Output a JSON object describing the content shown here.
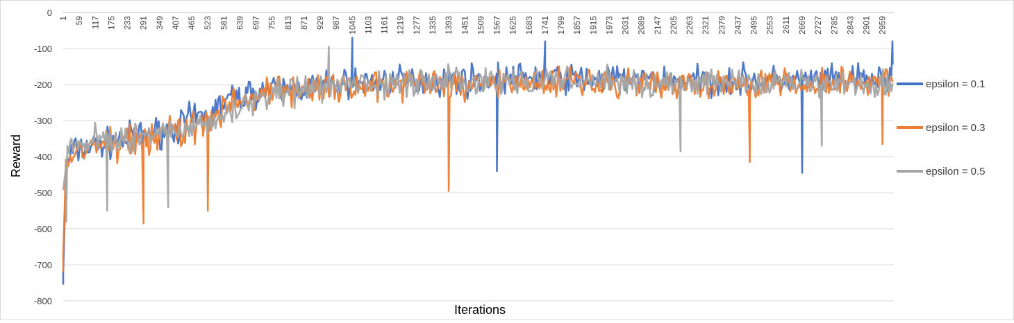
{
  "chart_data": {
    "type": "line",
    "title": "",
    "xlabel": "Iterations",
    "ylabel": "Reward",
    "ylim": [
      -800,
      0
    ],
    "yticks": [
      0,
      -100,
      -200,
      -300,
      -400,
      -500,
      -600,
      -700,
      -800
    ],
    "x_range": [
      1,
      3000
    ],
    "x_tick_labels": [
      "1",
      "59",
      "117",
      "175",
      "233",
      "291",
      "349",
      "407",
      "465",
      "523",
      "581",
      "639",
      "697",
      "755",
      "813",
      "871",
      "929",
      "987",
      "1045",
      "1103",
      "1161",
      "1219",
      "1277",
      "1335",
      "1393",
      "1451",
      "1509",
      "1567",
      "1625",
      "1683",
      "1741",
      "1799",
      "1857",
      "1915",
      "1973",
      "2031",
      "2089",
      "2147",
      "2205",
      "2263",
      "2321",
      "2379",
      "2437",
      "2495",
      "2553",
      "2611",
      "2669",
      "2727",
      "2785",
      "2843",
      "2901",
      "2959"
    ],
    "grid": "horizontal",
    "legend": "right",
    "series": [
      {
        "name": "epsilon = 0.1",
        "color": "#4472C4",
        "x": [
          1,
          12,
          30,
          60,
          100,
          150,
          200,
          300,
          400,
          465,
          523,
          600,
          700,
          800,
          900,
          987,
          1045,
          1200,
          1400,
          1567,
          1700,
          1741,
          1900,
          2100,
          2300,
          2500,
          2669,
          2800,
          2959,
          3000
        ],
        "center": [
          -720,
          -430,
          -390,
          -380,
          -370,
          -365,
          -355,
          -340,
          -320,
          -300,
          -285,
          -240,
          -220,
          -215,
          -205,
          -200,
          -195,
          -190,
          -190,
          -185,
          -180,
          -180,
          -185,
          -185,
          -190,
          -190,
          -190,
          -190,
          -185,
          -180
        ],
        "spread": [
          40,
          80,
          60,
          60,
          60,
          60,
          60,
          60,
          60,
          70,
          60,
          60,
          60,
          60,
          60,
          60,
          60,
          60,
          60,
          60,
          60,
          60,
          60,
          60,
          60,
          60,
          60,
          60,
          60,
          60
        ],
        "spikes": [
          [
            1,
            -755
          ],
          [
            1045,
            -70
          ],
          [
            1567,
            -440
          ],
          [
            1741,
            -80
          ],
          [
            2669,
            -445
          ],
          [
            2995,
            -80
          ]
        ]
      },
      {
        "name": "epsilon = 0.3",
        "color": "#ED7D31",
        "x": [
          1,
          12,
          30,
          60,
          100,
          150,
          200,
          291,
          400,
          523,
          600,
          700,
          800,
          900,
          1000,
          1200,
          1393,
          1600,
          1800,
          2000,
          2200,
          2400,
          2600,
          2800,
          3000
        ],
        "center": [
          -650,
          -430,
          -400,
          -380,
          -375,
          -365,
          -360,
          -350,
          -330,
          -310,
          -260,
          -230,
          -220,
          -215,
          -210,
          -200,
          -200,
          -195,
          -195,
          -195,
          -200,
          -200,
          -200,
          -195,
          -190
        ],
        "spread": [
          60,
          80,
          60,
          60,
          60,
          60,
          60,
          70,
          60,
          70,
          60,
          60,
          60,
          60,
          60,
          60,
          60,
          60,
          60,
          60,
          60,
          60,
          60,
          60,
          60
        ],
        "spikes": [
          [
            1,
            -720
          ],
          [
            291,
            -585
          ],
          [
            523,
            -550
          ],
          [
            1393,
            -495
          ],
          [
            2480,
            -415
          ],
          [
            2959,
            -365
          ]
        ]
      },
      {
        "name": "epsilon = 0.5",
        "color": "#A5A5A5",
        "x": [
          1,
          12,
          30,
          60,
          100,
          175,
          250,
          349,
          465,
          581,
          700,
          800,
          900,
          1000,
          1200,
          1400,
          1600,
          1800,
          2000,
          2200,
          2400,
          2600,
          2800,
          3000
        ],
        "center": [
          -450,
          -390,
          -375,
          -365,
          -360,
          -355,
          -345,
          -335,
          -320,
          -290,
          -240,
          -220,
          -215,
          -205,
          -195,
          -190,
          -190,
          -190,
          -190,
          -195,
          -195,
          -195,
          -195,
          -195
        ],
        "spread": [
          70,
          70,
          60,
          60,
          60,
          60,
          60,
          60,
          60,
          60,
          60,
          60,
          60,
          60,
          60,
          60,
          60,
          60,
          60,
          60,
          60,
          60,
          60,
          60
        ],
        "spikes": [
          [
            12,
            -580
          ],
          [
            160,
            -550
          ],
          [
            380,
            -540
          ],
          [
            960,
            -95
          ],
          [
            2230,
            -385
          ],
          [
            2740,
            -370
          ]
        ]
      }
    ]
  }
}
